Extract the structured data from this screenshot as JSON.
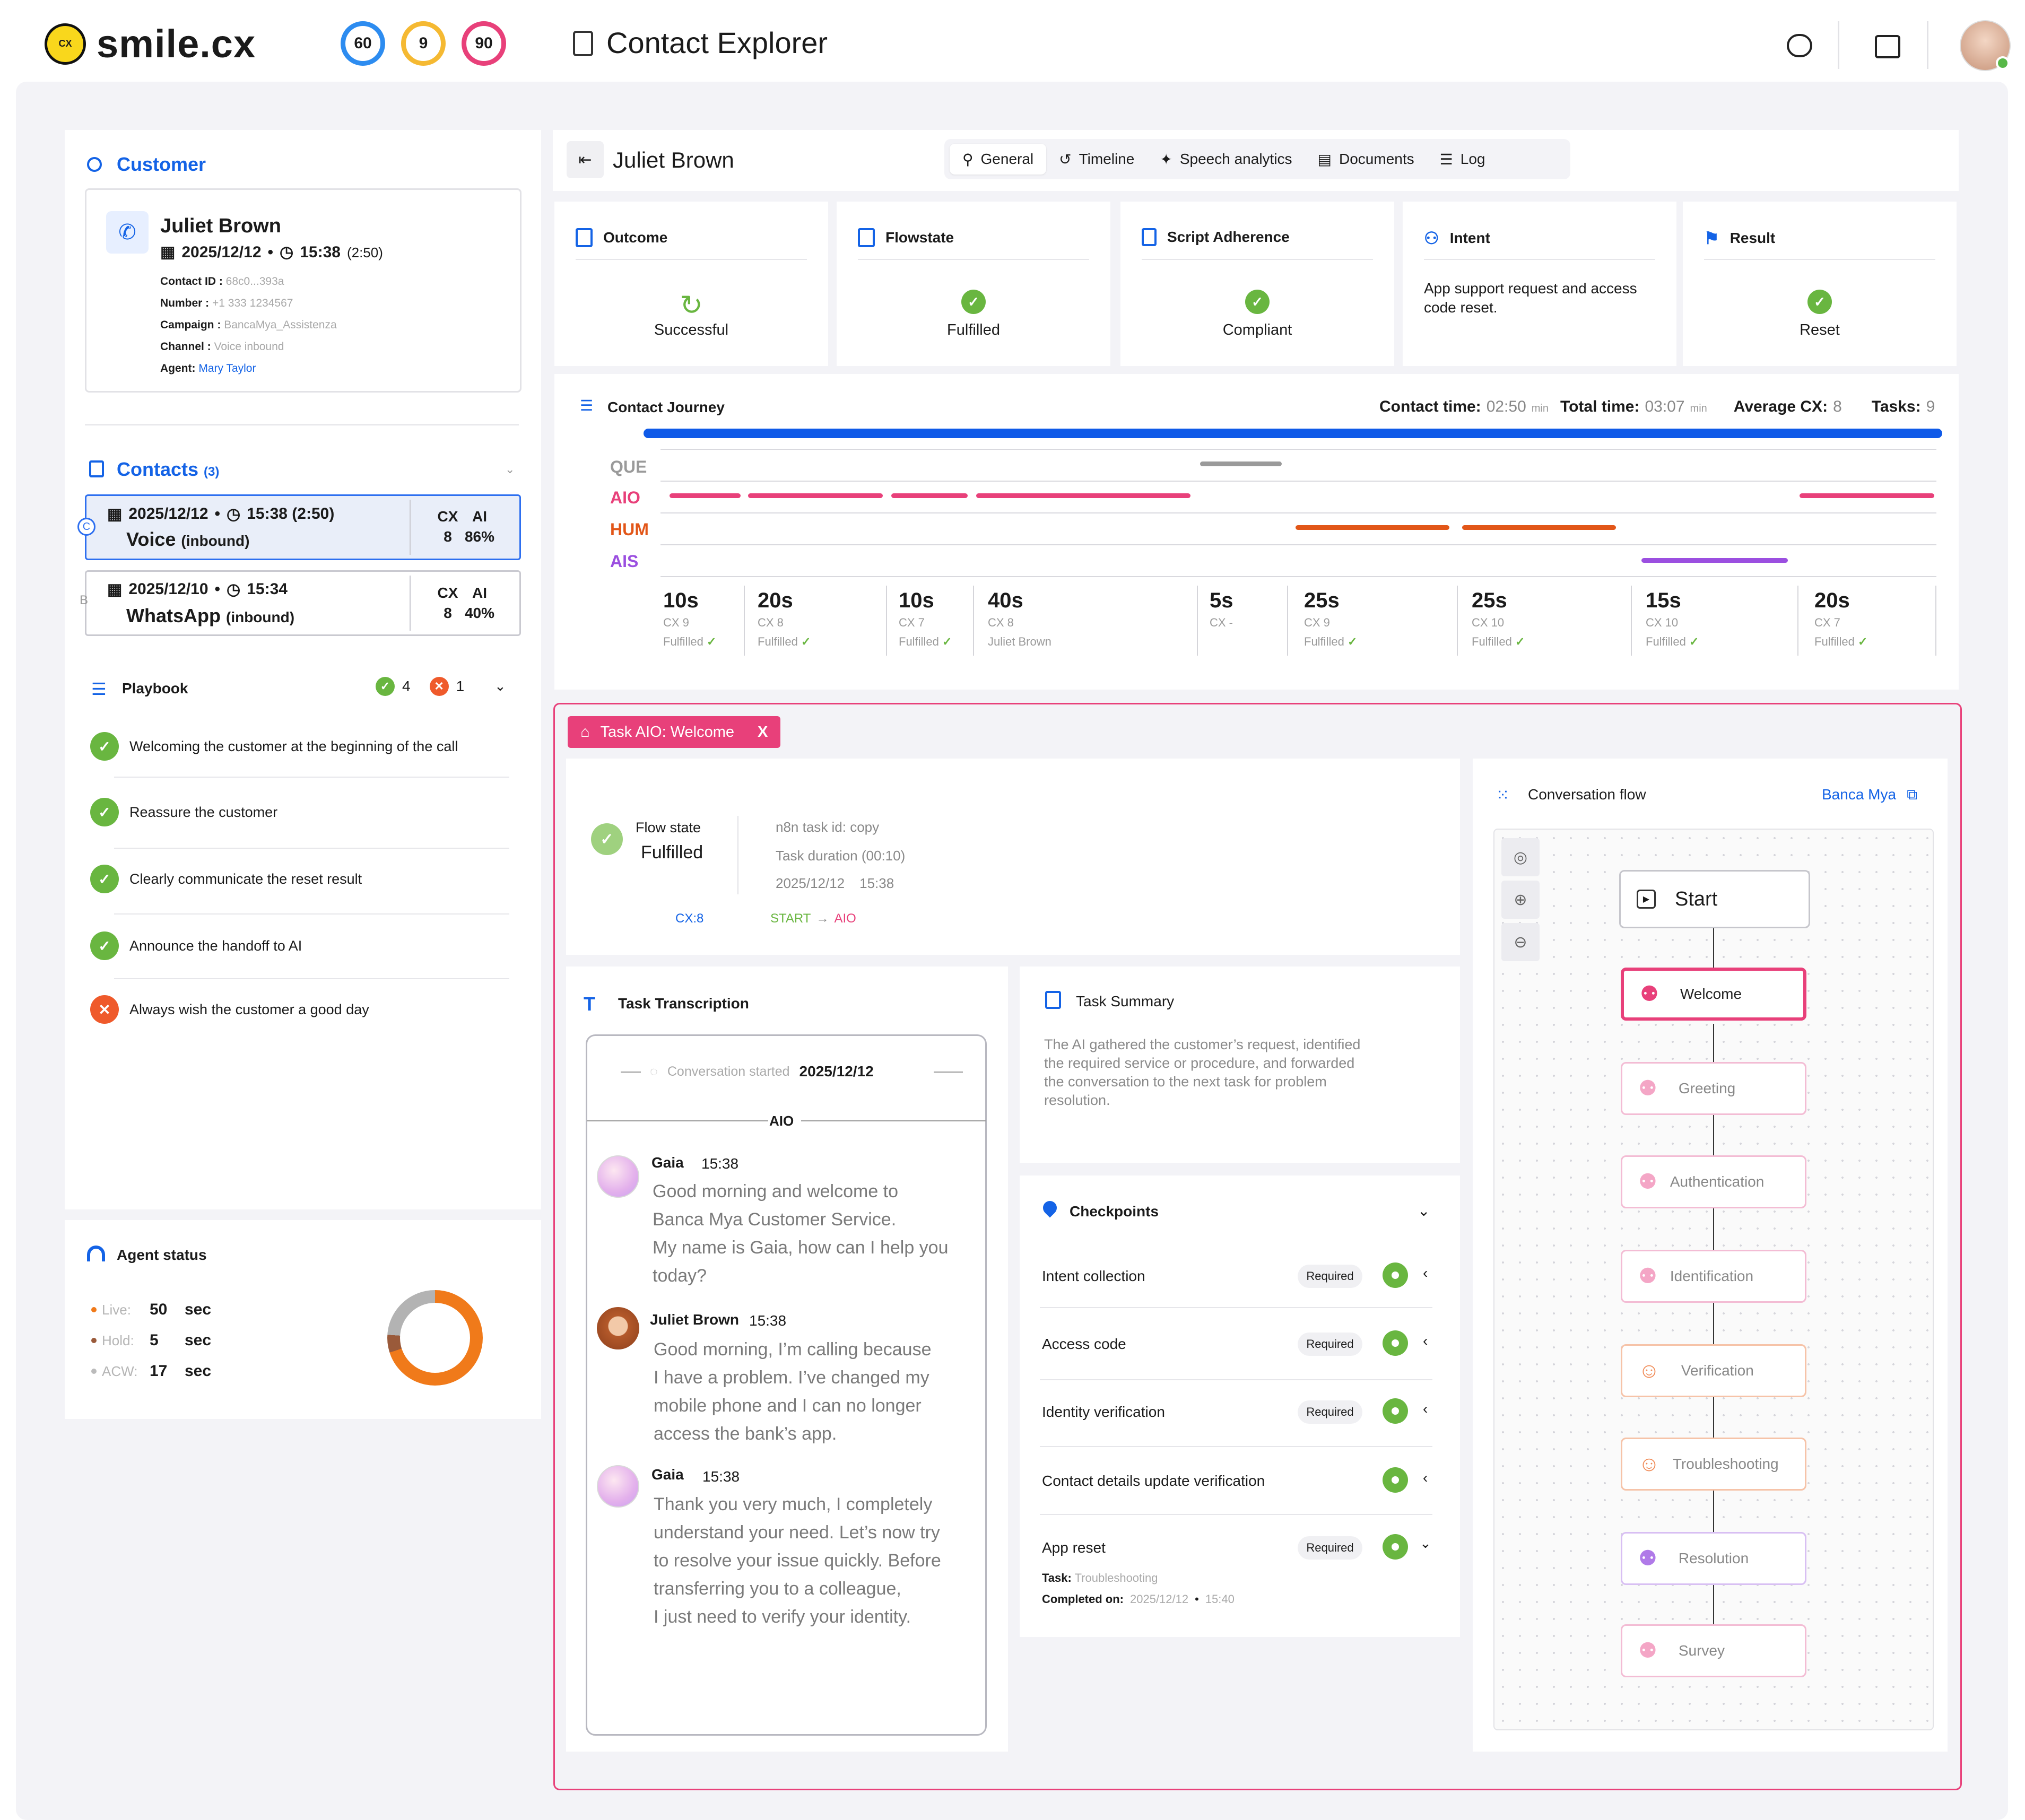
{
  "header": {
    "brand": "smile.cx",
    "scores": [
      {
        "value": "60",
        "color": "#2d8cf0"
      },
      {
        "value": "9",
        "color": "#f5b932"
      },
      {
        "value": "90",
        "color": "#e8407a"
      }
    ],
    "title": "Contact Explorer",
    "icons": [
      "chat-icon",
      "badge-icon",
      "avatar"
    ]
  },
  "customer": {
    "section_title": "Customer",
    "name": "Juliet Brown",
    "date": "2025/12/12",
    "time": "15:38",
    "duration": "(2:50)",
    "fields": [
      {
        "label": "Contact ID :",
        "value": "68c0...393a"
      },
      {
        "label": "Number :",
        "value": "+1 333 1234567"
      },
      {
        "label": "Campaign :",
        "value": "BancaMya_Assistenza"
      },
      {
        "label": "Channel :",
        "value": "Voice inbound"
      },
      {
        "label": "Agent:",
        "value": "Mary Taylor"
      }
    ]
  },
  "contacts": {
    "title": "Contacts",
    "count": "(3)",
    "items": [
      {
        "marker": "C",
        "date": "2025/12/12",
        "time": "15:38 (2:50)",
        "channel": "Voice",
        "dir": "(inbound)",
        "cx_label": "CX",
        "cx": "8",
        "ai_label": "AI",
        "ai": "86%"
      },
      {
        "marker": "B",
        "date": "2025/12/10",
        "time": "15:34",
        "channel": "WhatsApp",
        "dir": "(inbound)",
        "cx_label": "CX",
        "cx": "8",
        "ai_label": "AI",
        "ai": "40%"
      }
    ]
  },
  "playbook": {
    "title": "Playbook",
    "ok_count": "4",
    "ko_count": "1",
    "items": [
      {
        "label": "Welcoming the customer at the beginning of the call",
        "status": "ok"
      },
      {
        "label": "Reassure the customer",
        "status": "ok"
      },
      {
        "label": "Clearly communicate the reset result",
        "status": "ok"
      },
      {
        "label": "Announce the handoff to AI",
        "status": "ok"
      },
      {
        "label": "Always wish the customer a good day",
        "status": "ko"
      }
    ]
  },
  "agent_status": {
    "title": "Agent status",
    "rows": [
      {
        "label": "Live:",
        "value": "50",
        "unit": "sec",
        "color": "#f07a1a"
      },
      {
        "label": "Hold:",
        "value": "5",
        "unit": "sec",
        "color": "#9a5a3a"
      },
      {
        "label": "ACW:",
        "value": "17",
        "unit": "sec",
        "color": "#bbbbbb"
      }
    ]
  },
  "contact_header": {
    "name": "Juliet Brown"
  },
  "tabs": [
    "General",
    "Timeline",
    "Speech analytics",
    "Documents",
    "Log"
  ],
  "metrics": [
    {
      "title": "Outcome",
      "value": "Successful"
    },
    {
      "title": "Flowstate",
      "value": "Fulfilled"
    },
    {
      "title": "Script Adherence",
      "value": "Compliant"
    },
    {
      "title": "Intent",
      "value": "App support request and access code reset."
    },
    {
      "title": "Result",
      "value": "Reset"
    }
  ],
  "journey": {
    "title": "Contact Journey",
    "contact_time_label": "Contact time:",
    "contact_time": "02:50",
    "min1": "min",
    "total_time_label": "Total time:",
    "total_time": "03:07",
    "min2": "min",
    "avg_cx_label": "Average CX:",
    "avg_cx": "8",
    "tasks_label": "Tasks:",
    "tasks": "9",
    "lanes": [
      {
        "label": "QUE",
        "color": "#9a9a9a"
      },
      {
        "label": "AIO",
        "color": "#e8407a"
      },
      {
        "label": "HUM",
        "color": "#e25618"
      },
      {
        "label": "AIS",
        "color": "#9b4fe0"
      }
    ],
    "steps": [
      {
        "dur": "10s",
        "cx": "CX 9",
        "state": "Fulfilled",
        "ok": true
      },
      {
        "dur": "20s",
        "cx": "CX 8",
        "state": "Fulfilled",
        "ok": true
      },
      {
        "dur": "10s",
        "cx": "CX 7",
        "state": "Fulfilled",
        "ok": true
      },
      {
        "dur": "40s",
        "cx": "CX 8",
        "state": "Juliet Brown",
        "ok": false
      },
      {
        "dur": "5s",
        "cx": "CX -",
        "state": "",
        "ok": false
      },
      {
        "dur": "25s",
        "cx": "CX 9",
        "state": "Fulfilled",
        "ok": true
      },
      {
        "dur": "25s",
        "cx": "CX 10",
        "state": "Fulfilled",
        "ok": true
      },
      {
        "dur": "15s",
        "cx": "CX 10",
        "state": "Fulfilled",
        "ok": true
      },
      {
        "dur": "20s",
        "cx": "CX 7",
        "state": "Fulfilled",
        "ok": true
      }
    ]
  },
  "task": {
    "badge": "Task AIO: Welcome",
    "close": "X",
    "flow_state_label": "Flow state",
    "flow_state": "Fulfilled",
    "cx": "CX:8",
    "task_id": "n8n task id: copy",
    "task_duration": "Task duration (00:10)",
    "date": "2025/12/12",
    "time": "15:38",
    "path_from": "START",
    "path_arrow": "→",
    "path_to": "AIO"
  },
  "transcription": {
    "title": "Task Transcription",
    "started_label": "Conversation started",
    "started_date": "2025/12/12",
    "section": "AIO",
    "messages": [
      {
        "name": "Gaia",
        "time": "15:38",
        "lines": [
          "Good morning and welcome to",
          "Banca Mya Customer Service.",
          "My name is Gaia, how can I help you",
          "today?"
        ]
      },
      {
        "name": "Juliet Brown",
        "time": "15:38",
        "lines": [
          "Good morning, I’m calling because",
          "I have a problem. I’ve changed my",
          "mobile phone and I can no longer",
          "access the bank’s app."
        ]
      },
      {
        "name": "Gaia",
        "time": "15:38",
        "lines": [
          "Thank you very much, I completely",
          "understand your need. Let’s now try",
          "to resolve your issue quickly. Before",
          "transferring you to a colleague,",
          "I just need to verify your identity."
        ]
      }
    ]
  },
  "summary": {
    "title": "Task Summary",
    "lines": [
      "The AI gathered the customer’s request, identified",
      "the required service or procedure, and forwarded",
      "the conversation to the next task for problem",
      "resolution."
    ]
  },
  "checkpoints": {
    "title": "Checkpoints",
    "items": [
      {
        "label": "Intent collection",
        "badge": "Required"
      },
      {
        "label": "Access code",
        "badge": "Required"
      },
      {
        "label": "Identity verification",
        "badge": "Required"
      },
      {
        "label": "Contact details update verification",
        "badge": ""
      },
      {
        "label": "App reset",
        "badge": "Required"
      }
    ],
    "task_label": "Task:",
    "task_value": "Troubleshooting",
    "completed_label": "Completed on:",
    "completed_date": "2025/12/12",
    "completed_time": "15:40"
  },
  "flow": {
    "title": "Conversation flow",
    "link": "Banca Mya",
    "start": "Start",
    "nodes": [
      {
        "label": "Welcome",
        "kind": "bot",
        "active": true
      },
      {
        "label": "Greeting",
        "kind": "bot",
        "active": false
      },
      {
        "label": "Authentication",
        "kind": "bot",
        "active": false
      },
      {
        "label": "Identification",
        "kind": "bot",
        "active": false
      },
      {
        "label": "Verification",
        "kind": "person",
        "active": false
      },
      {
        "label": "Troubleshooting",
        "kind": "person",
        "active": false
      },
      {
        "label": "Resolution",
        "kind": "bot-alt",
        "active": false
      },
      {
        "label": "Survey",
        "kind": "bot",
        "active": false
      }
    ]
  }
}
